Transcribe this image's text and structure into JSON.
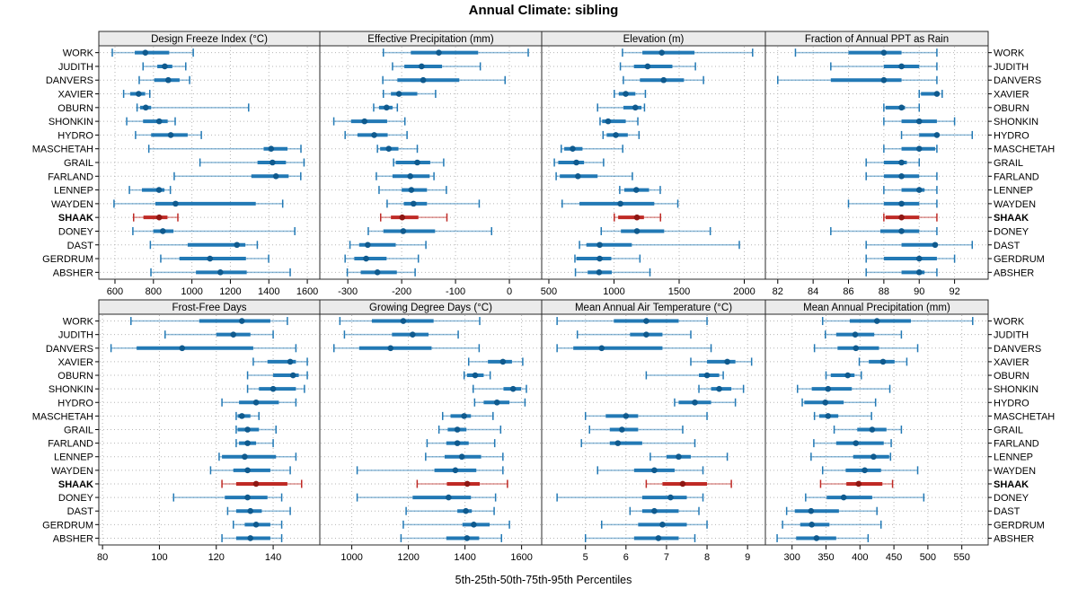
{
  "chart_data": {
    "type": "scatter",
    "subtype": "percentile-interval-trellis",
    "title": "Annual Climate: sibling",
    "xlabel": "5th-25th-50th-75th-95th Percentiles",
    "grid": "dotted",
    "legend_position": "none",
    "stations": [
      "WORK",
      "JUDITH",
      "DANVERS",
      "XAVIER",
      "OBURN",
      "SHONKIN",
      "HYDRO",
      "MASCHETAH",
      "GRAIL",
      "FARLAND",
      "LENNEP",
      "WAYDEN",
      "SHAAK",
      "DONEY",
      "DAST",
      "GERDRUM",
      "ABSHER"
    ],
    "highlight_station": "SHAAK",
    "percentiles": [
      5,
      25,
      50,
      75,
      95
    ],
    "colors": {
      "norm": "#2279b5",
      "normDot": "#0f5a8e",
      "hi": "#bf2a25",
      "hiDot": "#8e1713",
      "grid": "#b5b5b5",
      "header": "#ebebeb",
      "border": "#2a2a2a"
    },
    "panels": [
      {
        "title": "Design Freeze Index (°C)",
        "row": 0,
        "col": 0,
        "xlim": [
          516,
          1665
        ],
        "ticks": [
          600,
          800,
          1000,
          1200,
          1400,
          1600
        ],
        "values": [
          [
            586,
            703,
            758,
            882,
            1007
          ],
          [
            746,
            820,
            859,
            898,
            968
          ],
          [
            726,
            804,
            877,
            936,
            988
          ],
          [
            645,
            679,
            723,
            757,
            781
          ],
          [
            715,
            731,
            760,
            788,
            1295
          ],
          [
            661,
            746,
            830,
            874,
            913
          ],
          [
            707,
            788,
            890,
            978,
            1049
          ],
          [
            776,
            1373,
            1412,
            1497,
            1567
          ],
          [
            1042,
            1341,
            1419,
            1489,
            1583
          ],
          [
            908,
            1309,
            1437,
            1503,
            1566
          ],
          [
            675,
            740,
            829,
            857,
            888
          ],
          [
            595,
            810,
            915,
            1332,
            1472
          ],
          [
            697,
            748,
            830,
            873,
            927
          ],
          [
            693,
            799,
            849,
            904,
            1535
          ],
          [
            784,
            978,
            1234,
            1278,
            1340
          ],
          [
            838,
            935,
            1094,
            1281,
            1399
          ],
          [
            787,
            1021,
            1148,
            1285,
            1511
          ]
        ]
      },
      {
        "title": "Effective Precipitation (mm)",
        "row": 0,
        "col": 1,
        "xlim": [
          -352,
          60
        ],
        "ticks": [
          -300,
          -200,
          -100,
          0
        ],
        "values": [
          [
            -234,
            -183,
            -131,
            -58,
            35
          ],
          [
            -217,
            -195,
            -163,
            -125,
            -54
          ],
          [
            -235,
            -208,
            -160,
            -93,
            -8
          ],
          [
            -234,
            -220,
            -205,
            -171,
            -137
          ],
          [
            -252,
            -242,
            -228,
            -217,
            -208
          ],
          [
            -326,
            -294,
            -269,
            -227,
            -194
          ],
          [
            -305,
            -282,
            -251,
            -226,
            -190
          ],
          [
            -245,
            -240,
            -224,
            -206,
            -171
          ],
          [
            -215,
            -211,
            -171,
            -147,
            -122
          ],
          [
            -247,
            -217,
            -184,
            -148,
            -140
          ],
          [
            -242,
            -200,
            -182,
            -153,
            -117
          ],
          [
            -227,
            -196,
            -178,
            -153,
            -56
          ],
          [
            -239,
            -220,
            -199,
            -169,
            -116
          ],
          [
            -262,
            -234,
            -197,
            -138,
            -33
          ],
          [
            -296,
            -279,
            -263,
            -211,
            -155
          ],
          [
            -305,
            -288,
            -266,
            -228,
            -169
          ],
          [
            -301,
            -276,
            -245,
            -209,
            -175
          ]
        ]
      },
      {
        "title": "Elevation (m)",
        "row": 0,
        "col": 2,
        "xlim": [
          445,
          2162
        ],
        "ticks": [
          500,
          1000,
          1500,
          2000
        ],
        "values": [
          [
            1065,
            1218,
            1367,
            1618,
            2064
          ],
          [
            1049,
            1153,
            1258,
            1448,
            1625
          ],
          [
            1072,
            1199,
            1381,
            1537,
            1687
          ],
          [
            1002,
            1037,
            1090,
            1164,
            1241
          ],
          [
            874,
            1072,
            1164,
            1211,
            1234
          ],
          [
            893,
            909,
            955,
            1090,
            1183
          ],
          [
            916,
            944,
            1014,
            1106,
            1192
          ],
          [
            595,
            618,
            683,
            758,
            1067
          ],
          [
            542,
            572,
            711,
            770,
            920
          ],
          [
            556,
            584,
            723,
            874,
            1141
          ],
          [
            1044,
            1079,
            1171,
            1269,
            1355
          ],
          [
            602,
            735,
            1049,
            1309,
            1490
          ],
          [
            1002,
            1032,
            1176,
            1230,
            1357
          ],
          [
            902,
            1053,
            1176,
            1385,
            1739
          ],
          [
            735,
            788,
            890,
            1137,
            1962
          ],
          [
            700,
            711,
            890,
            979,
            1199
          ],
          [
            704,
            798,
            886,
            983,
            1276
          ]
        ]
      },
      {
        "title": "Fraction of Annual PPT as Rain",
        "row": 0,
        "col": 3,
        "xlim": [
          81.3,
          93.9
        ],
        "ticks": [
          82,
          84,
          86,
          88,
          90,
          92
        ],
        "values": [
          [
            83,
            86,
            88,
            89,
            91
          ],
          [
            85,
            88,
            89,
            90,
            91
          ],
          [
            82,
            85,
            88,
            89,
            91
          ],
          [
            90,
            90.1,
            91,
            91.1,
            91.3
          ],
          [
            88,
            88.1,
            89,
            89.2,
            90
          ],
          [
            88,
            89,
            90,
            91,
            92
          ],
          [
            89,
            90,
            91,
            91.1,
            93
          ],
          [
            88,
            89,
            90,
            90.9,
            91
          ],
          [
            87,
            88,
            89,
            89.3,
            90
          ],
          [
            87,
            88,
            89,
            90,
            91
          ],
          [
            88,
            89,
            90,
            90.3,
            91
          ],
          [
            86,
            88,
            89,
            90,
            91
          ],
          [
            88,
            88.1,
            89,
            90,
            91
          ],
          [
            85,
            87.8,
            89,
            90,
            91
          ],
          [
            87,
            89,
            90.9,
            91,
            93
          ],
          [
            87,
            88,
            90,
            91,
            92
          ],
          [
            87,
            89,
            90,
            90.3,
            91
          ]
        ]
      },
      {
        "title": "Frost-Free Days",
        "row": 1,
        "col": 0,
        "xlim": [
          78.7,
          156.4
        ],
        "ticks": [
          80,
          100,
          120,
          140
        ],
        "values": [
          [
            90,
            114,
            129,
            139,
            145
          ],
          [
            102,
            120,
            126,
            132,
            140
          ],
          [
            83,
            92,
            108,
            133,
            148
          ],
          [
            133,
            138,
            146,
            148,
            152
          ],
          [
            131,
            140,
            147,
            149,
            152
          ],
          [
            131,
            135,
            140,
            148,
            151
          ],
          [
            122,
            128,
            134,
            142,
            148
          ],
          [
            127,
            127.5,
            129,
            132,
            135
          ],
          [
            127,
            127.5,
            131,
            135,
            141
          ],
          [
            127,
            128,
            131,
            134,
            140
          ],
          [
            121,
            122,
            130,
            141,
            148
          ],
          [
            118,
            126,
            131,
            139,
            146
          ],
          [
            122,
            127,
            134,
            145,
            150
          ],
          [
            105,
            123,
            131,
            138,
            143
          ],
          [
            124,
            127,
            132,
            136,
            146
          ],
          [
            126,
            130,
            134,
            139,
            143
          ],
          [
            122,
            127,
            132,
            139,
            143
          ]
        ]
      },
      {
        "title": "Growing Degree Days (°C)",
        "row": 1,
        "col": 1,
        "xlim": [
          887,
          1671
        ],
        "ticks": [
          1000,
          1200,
          1400,
          1600
        ],
        "values": [
          [
            958,
            1071,
            1182,
            1289,
            1452
          ],
          [
            974,
            1142,
            1215,
            1271,
            1376
          ],
          [
            937,
            1026,
            1137,
            1282,
            1450
          ],
          [
            1413,
            1481,
            1534,
            1566,
            1604
          ],
          [
            1397,
            1407,
            1436,
            1466,
            1489
          ],
          [
            1429,
            1536,
            1570,
            1598,
            1617
          ],
          [
            1434,
            1466,
            1513,
            1557,
            1612
          ],
          [
            1321,
            1349,
            1397,
            1421,
            1499
          ],
          [
            1308,
            1339,
            1373,
            1405,
            1526
          ],
          [
            1266,
            1334,
            1373,
            1413,
            1505
          ],
          [
            1261,
            1328,
            1389,
            1457,
            1534
          ],
          [
            1019,
            1292,
            1366,
            1440,
            1534
          ],
          [
            1231,
            1336,
            1408,
            1452,
            1550
          ],
          [
            1019,
            1215,
            1342,
            1421,
            1508
          ],
          [
            1192,
            1373,
            1403,
            1424,
            1503
          ],
          [
            1182,
            1391,
            1431,
            1487,
            1557
          ],
          [
            1174,
            1334,
            1407,
            1450,
            1529
          ]
        ]
      },
      {
        "title": "Mean Annual Air Temperature (°C)",
        "row": 1,
        "col": 2,
        "xlim": [
          3.92,
          9.44
        ],
        "ticks": [
          5,
          6,
          7,
          8,
          9
        ],
        "values": [
          [
            4.3,
            5.7,
            6.5,
            7.3,
            8.0
          ],
          [
            4.8,
            6.1,
            6.5,
            6.9,
            7.6
          ],
          [
            4.3,
            4.7,
            5.4,
            6.9,
            8.1
          ],
          [
            7.6,
            8.0,
            8.5,
            8.7,
            9.1
          ],
          [
            6.5,
            7.8,
            8.0,
            8.3,
            8.4
          ],
          [
            7.8,
            8.1,
            8.3,
            8.6,
            8.9
          ],
          [
            7.2,
            7.3,
            7.7,
            8.1,
            8.7
          ],
          [
            5.0,
            5.5,
            6.0,
            6.3,
            8.0
          ],
          [
            5.1,
            5.6,
            5.9,
            6.3,
            7.4
          ],
          [
            4.9,
            5.6,
            5.8,
            6.4,
            7.7
          ],
          [
            6.6,
            7.0,
            7.3,
            7.6,
            8.5
          ],
          [
            5.3,
            6.2,
            6.7,
            7.2,
            7.9
          ],
          [
            6.5,
            6.9,
            7.4,
            8.0,
            8.6
          ],
          [
            4.3,
            6.4,
            7.1,
            7.5,
            7.9
          ],
          [
            6.1,
            6.4,
            6.7,
            7.3,
            7.8
          ],
          [
            5.4,
            6.3,
            6.9,
            7.5,
            8.0
          ],
          [
            5.0,
            6.2,
            6.8,
            7.3,
            7.7
          ]
        ]
      },
      {
        "title": "Mean Annual Precipitation (mm)",
        "row": 1,
        "col": 3,
        "xlim": [
          260.7,
          588.8
        ],
        "ticks": [
          300,
          350,
          400,
          450,
          500,
          550
        ],
        "values": [
          [
            345,
            385,
            425,
            475,
            566
          ],
          [
            349,
            365,
            393,
            421,
            461
          ],
          [
            333,
            367,
            394,
            428,
            485
          ],
          [
            399,
            413,
            434,
            451,
            469
          ],
          [
            350,
            357,
            382,
            392,
            402
          ],
          [
            308,
            329,
            353,
            388,
            444
          ],
          [
            315,
            318,
            349,
            376,
            423
          ],
          [
            333,
            340,
            353,
            368,
            417
          ],
          [
            362,
            396,
            418,
            439,
            461
          ],
          [
            332,
            365,
            394,
            435,
            446
          ],
          [
            328,
            390,
            420,
            443,
            445
          ],
          [
            345,
            379,
            407,
            431,
            485
          ],
          [
            342,
            380,
            398,
            433,
            448
          ],
          [
            320,
            351,
            376,
            418,
            494
          ],
          [
            292,
            304,
            328,
            369,
            425
          ],
          [
            286,
            312,
            329,
            355,
            431
          ],
          [
            278,
            306,
            336,
            365,
            412
          ]
        ]
      }
    ]
  }
}
